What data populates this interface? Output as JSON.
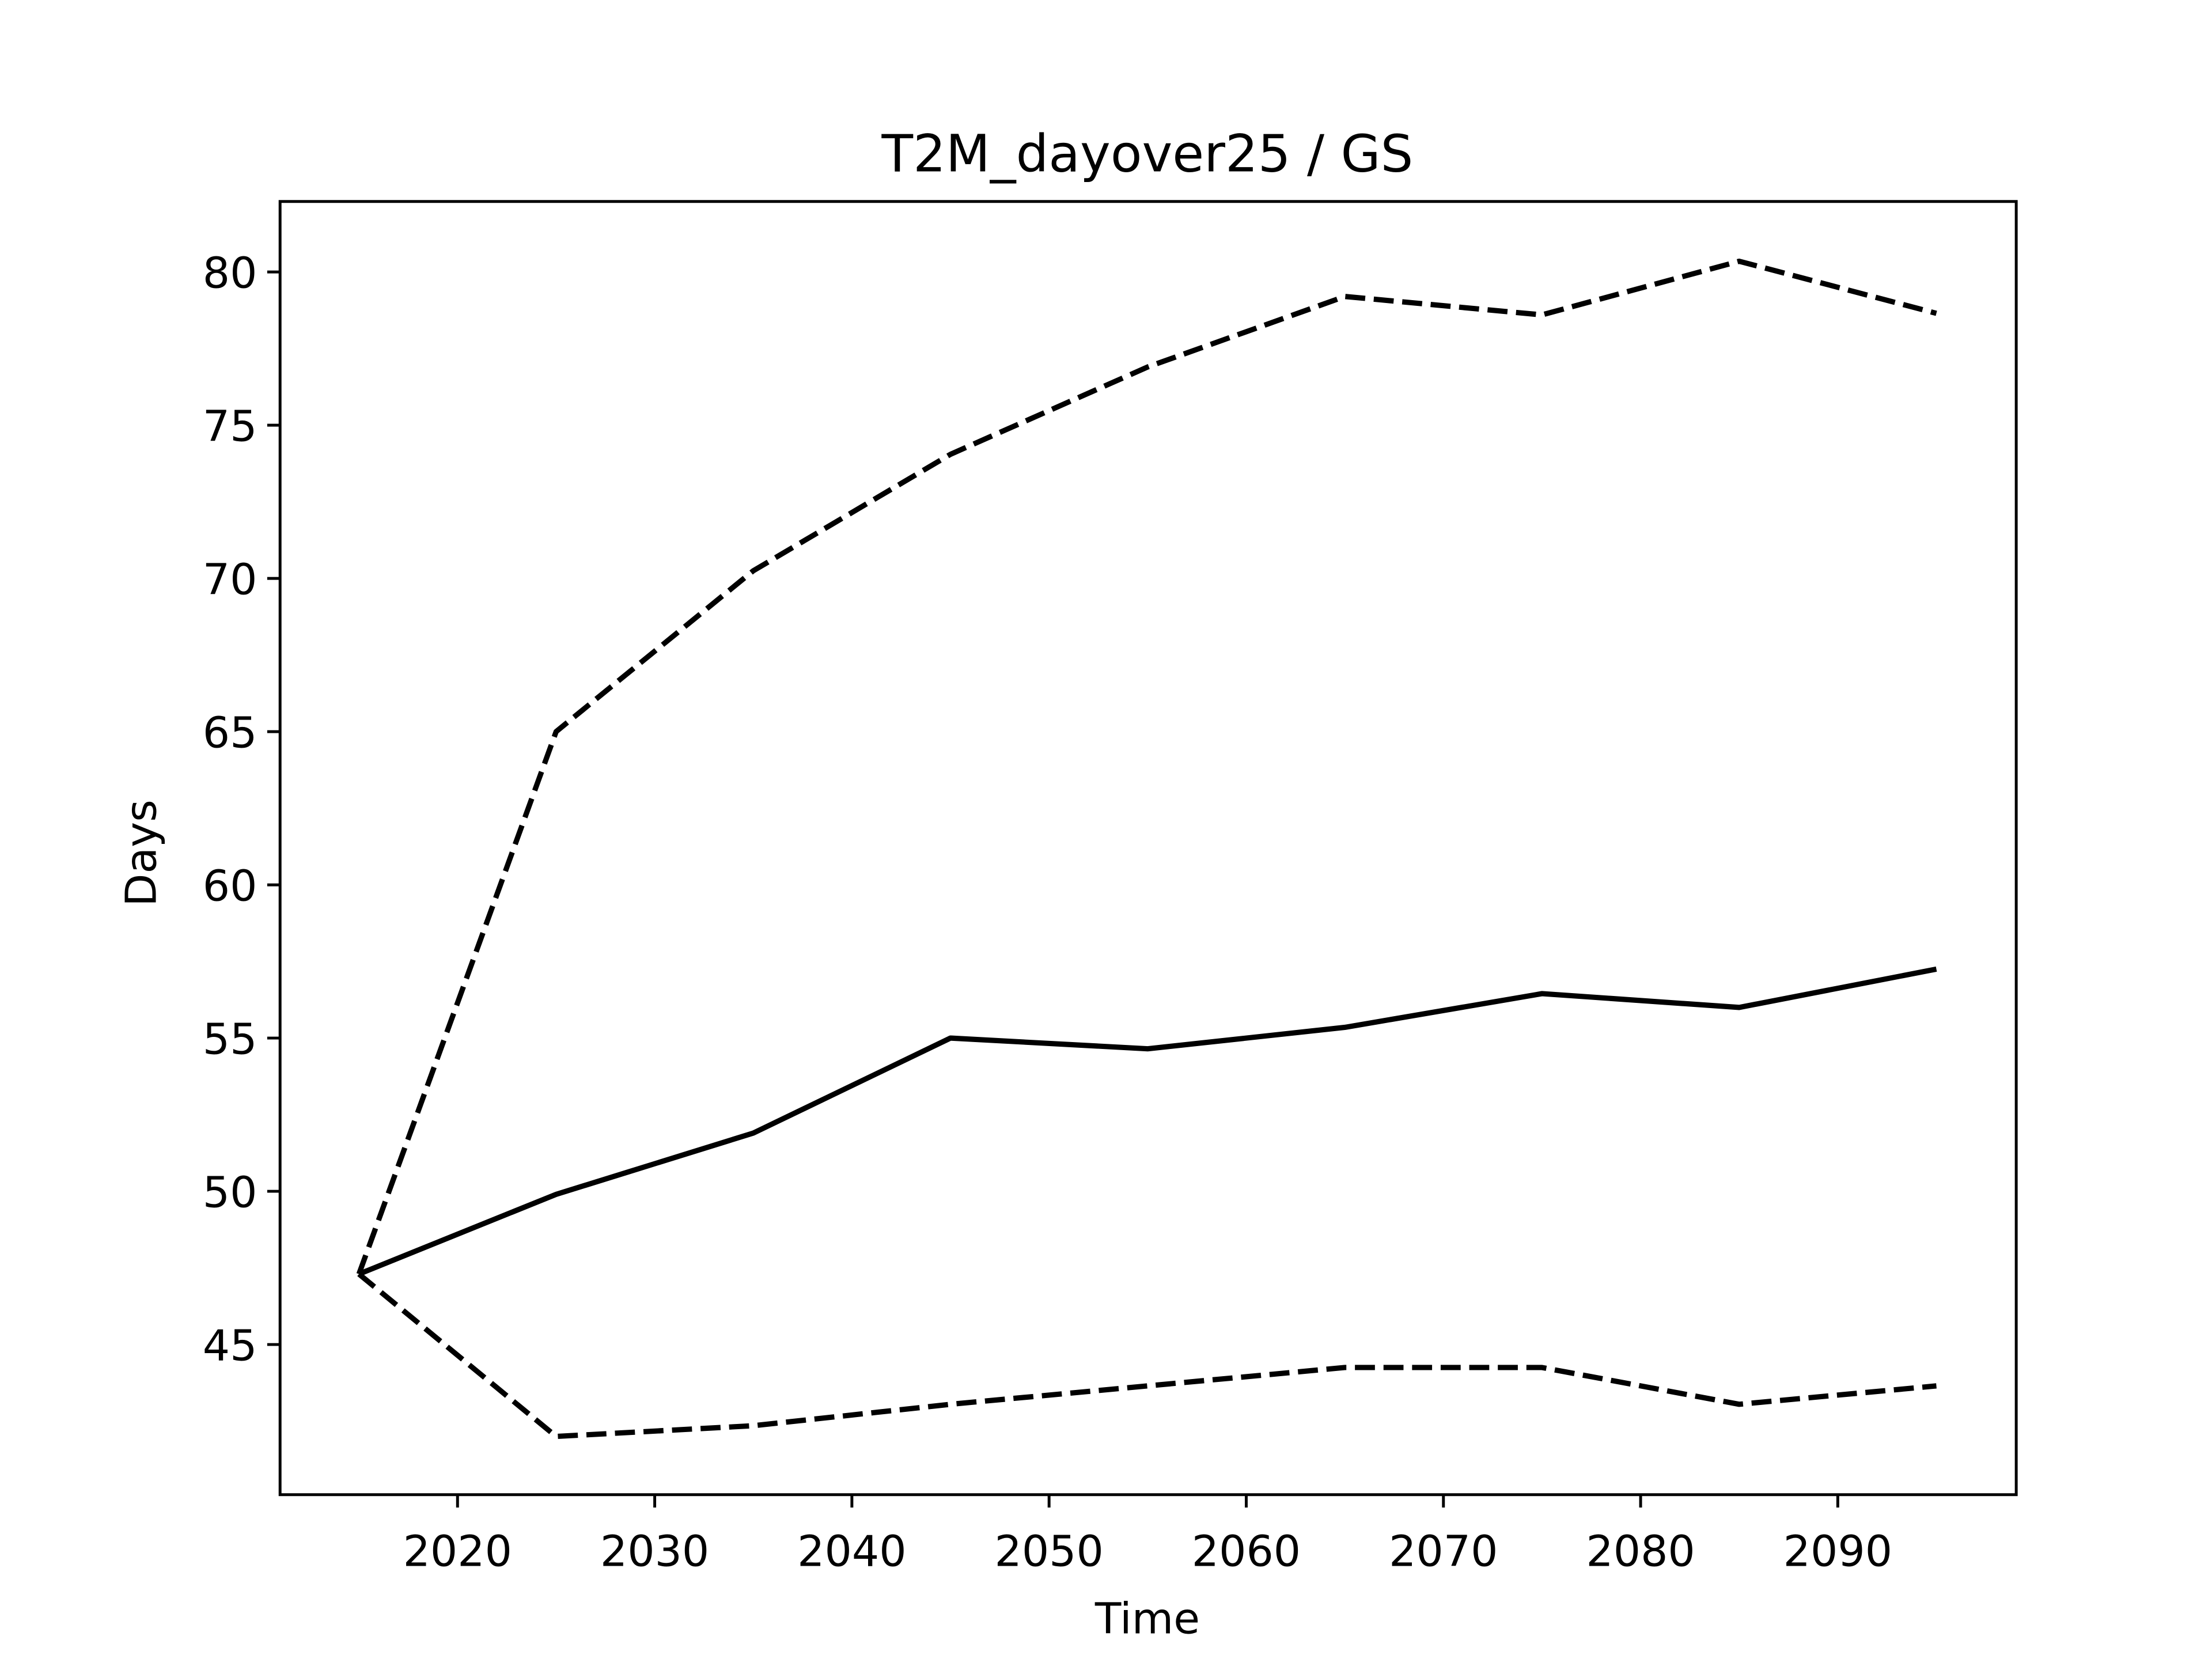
{
  "chart_data": {
    "type": "line",
    "title": "T2M_dayover25 / GS",
    "x_label": "Time",
    "y_label": "Days",
    "x": [
      2015,
      2025,
      2035,
      2045,
      2055,
      2065,
      2075,
      2085,
      2095
    ],
    "series": [
      {
        "color": "#000000",
        "style": "solid",
        "values": [
          47.3,
          49.9,
          51.9,
          55.0,
          54.65,
          55.35,
          56.45,
          56.0,
          57.25
        ]
      },
      {
        "color": "#000000",
        "style": "dashed",
        "values": [
          47.3,
          65.0,
          70.25,
          74.05,
          76.9,
          79.2,
          78.6,
          80.35,
          78.65
        ]
      },
      {
        "color": "#000000",
        "style": "dashed",
        "values": [
          47.3,
          42.0,
          42.35,
          43.05,
          43.65,
          44.25,
          44.25,
          43.05,
          43.65
        ]
      }
    ],
    "xlim": [
      2011,
      2099.05
    ],
    "xticks": [
      2020,
      2030,
      2040,
      2050,
      2060,
      2070,
      2080,
      2090
    ],
    "ylim": [
      40.1,
      82.3
    ],
    "yticks": [
      45,
      50,
      55,
      60,
      65,
      70,
      75,
      80
    ],
    "grid": false
  }
}
